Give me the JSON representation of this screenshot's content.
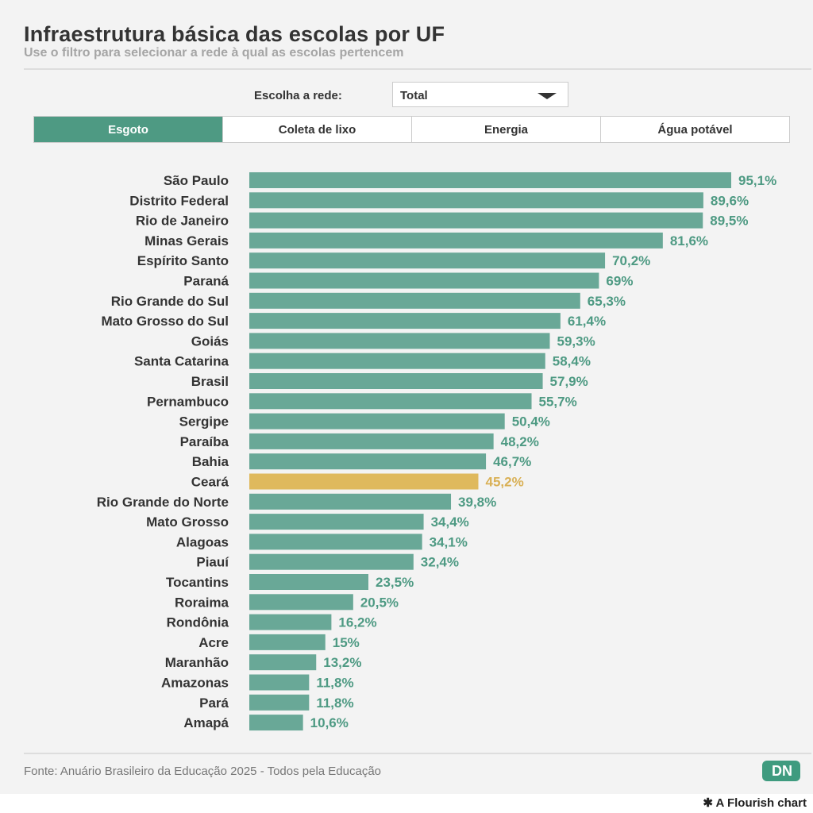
{
  "header": {
    "title": "Infraestrutura básica das escolas por UF",
    "subtitle": "Use o filtro para selecionar a rede à qual as escolas pertencem"
  },
  "filter": {
    "label": "Escolha a rede:",
    "selected": "Total"
  },
  "tabs": [
    {
      "label": "Esgoto",
      "active": true
    },
    {
      "label": "Coleta de lixo"
    },
    {
      "label": "Energia"
    },
    {
      "label": "Água potável"
    }
  ],
  "colors": {
    "bar": "#69a897",
    "highlight": "#dfb95d",
    "accent": "#4e9a83"
  },
  "chart_data": {
    "type": "bar",
    "orientation": "horizontal",
    "title": "Esgoto",
    "xlim": [
      0,
      100
    ],
    "highlight": "Ceará",
    "categories": [
      "São Paulo",
      "Distrito Federal",
      "Rio de Janeiro",
      "Minas Gerais",
      "Espírito Santo",
      "Paraná",
      "Rio Grande do Sul",
      "Mato Grosso do Sul",
      "Goiás",
      "Santa Catarina",
      "Brasil",
      "Pernambuco",
      "Sergipe",
      "Paraíba",
      "Bahia",
      "Ceará",
      "Rio Grande do Norte",
      "Mato Grosso",
      "Alagoas",
      "Piauí",
      "Tocantins",
      "Roraima",
      "Rondônia",
      "Acre",
      "Maranhão",
      "Amazonas",
      "Pará",
      "Amapá"
    ],
    "values": [
      95.1,
      89.6,
      89.5,
      81.6,
      70.2,
      69,
      65.3,
      61.4,
      59.3,
      58.4,
      57.9,
      55.7,
      50.4,
      48.2,
      46.7,
      45.2,
      39.8,
      34.4,
      34.1,
      32.4,
      23.5,
      20.5,
      16.2,
      15,
      13.2,
      11.8,
      11.8,
      10.6
    ],
    "labels": [
      "95,1%",
      "89,6%",
      "89,5%",
      "81,6%",
      "70,2%",
      "69%",
      "65,3%",
      "61,4%",
      "59,3%",
      "58,4%",
      "57,9%",
      "55,7%",
      "50,4%",
      "48,2%",
      "46,7%",
      "45,2%",
      "39,8%",
      "34,4%",
      "34,1%",
      "32,4%",
      "23,5%",
      "20,5%",
      "16,2%",
      "15%",
      "13,2%",
      "11,8%",
      "11,8%",
      "10,6%"
    ]
  },
  "footer": {
    "source": "Fonte: Anuário Brasileiro da Educação 2025 - Todos pela Educação",
    "logo": "DN",
    "flourish": "A Flourish chart"
  }
}
